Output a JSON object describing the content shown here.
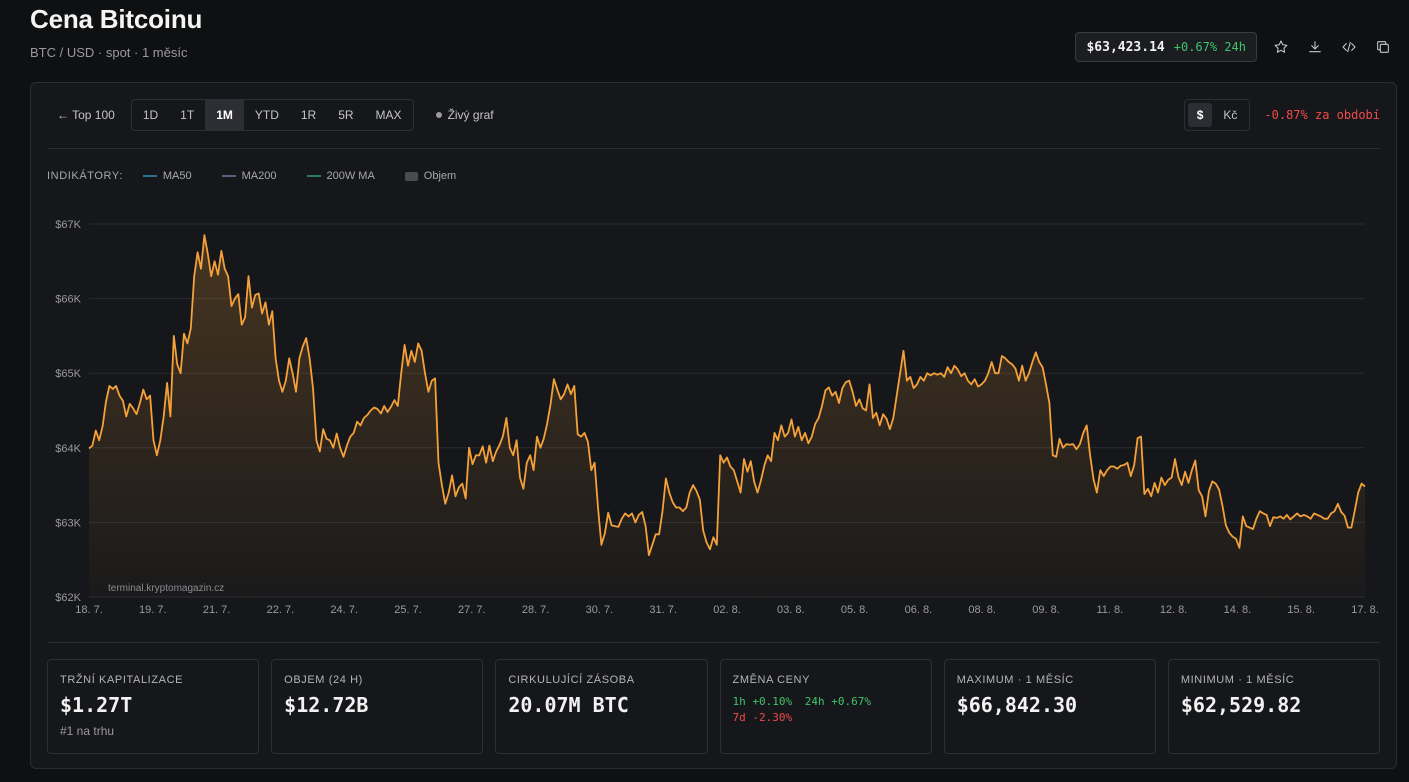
{
  "header": {
    "title": "Cena Bitcoinu",
    "subtitle": "BTC / USD · spot · 1 měsíc",
    "price": "$63,423.14",
    "change_24h": "+0.67% 24h"
  },
  "toolbar": {
    "back_label": "← Top 100",
    "ranges": [
      "1D",
      "1T",
      "1M",
      "YTD",
      "1R",
      "5R",
      "MAX"
    ],
    "active_range": "1M",
    "live_label": "Živý graf",
    "currencies": [
      "$",
      "Kč"
    ],
    "active_currency": "$",
    "period_change": "-0.87% za období"
  },
  "indicators": {
    "title": "INDIKÁTORY:",
    "items": [
      {
        "label": "MA50",
        "color": "#2f6f8f"
      },
      {
        "label": "MA200",
        "color": "#5b5f86"
      },
      {
        "label": "200W MA",
        "color": "#2f7a5e"
      },
      {
        "label": "Objem",
        "color": "#4a4b50"
      }
    ]
  },
  "colors": {
    "line": "#f5a13a",
    "positive": "#3fc46a",
    "negative": "#ef4b4b",
    "background": "#0f1012",
    "panel": "#16171a"
  },
  "chart_data": {
    "type": "area",
    "ylim": [
      62000,
      67000
    ],
    "y_ticks": [
      62000,
      63000,
      64000,
      65000,
      66000,
      67000
    ],
    "y_tick_labels": [
      "$62K",
      "$63K",
      "$64K",
      "$65K",
      "$66K",
      "$67K"
    ],
    "x_labels": [
      "18. 7.",
      "19. 7.",
      "21. 7.",
      "22. 7.",
      "24. 7.",
      "25. 7.",
      "27. 7.",
      "28. 7.",
      "30. 7.",
      "31. 7.",
      "02. 8.",
      "03. 8.",
      "05. 8.",
      "06. 8.",
      "08. 8.",
      "09. 8.",
      "11. 8.",
      "12. 8.",
      "14. 8.",
      "15. 8.",
      "17. 8."
    ],
    "watermark": "terminal.kryptomagazin.cz",
    "grid": true,
    "series": [
      {
        "values": [
          63990,
          64030,
          64230,
          64100,
          64290,
          64620,
          64830,
          64790,
          64830,
          64700,
          64630,
          64420,
          64590,
          64530,
          64450,
          64600,
          64780,
          64650,
          64700,
          64100,
          63900,
          64100,
          64420,
          64870,
          64420,
          65500,
          65120,
          65000,
          65530,
          65400,
          65600,
          66300,
          66620,
          66400,
          66850,
          66600,
          66300,
          66500,
          66320,
          66640,
          66400,
          66300,
          65900,
          66000,
          66060,
          65650,
          65750,
          66300,
          65880,
          66050,
          66070,
          65800,
          65950,
          65650,
          65830,
          65200,
          64900,
          64750,
          64900,
          65200,
          65000,
          64750,
          65200,
          65360,
          65470,
          65200,
          64800,
          64100,
          63950,
          64250,
          64120,
          64100,
          64000,
          64190,
          64000,
          63880,
          64030,
          64150,
          64200,
          64350,
          64300,
          64400,
          64440,
          64500,
          64540,
          64520,
          64460,
          64560,
          64480,
          64550,
          64640,
          64560,
          65000,
          65380,
          65100,
          65300,
          65150,
          65400,
          65300,
          65000,
          64750,
          64900,
          64930,
          63800,
          63500,
          63250,
          63400,
          63630,
          63350,
          63470,
          63520,
          63320,
          64000,
          63780,
          63900,
          63900,
          64020,
          63800,
          64030,
          63820,
          63950,
          64040,
          64160,
          64400,
          64000,
          63900,
          64100,
          63600,
          63450,
          63800,
          63900,
          63700,
          64150,
          64000,
          64120,
          64320,
          64580,
          64920,
          64780,
          64650,
          64720,
          64850,
          64720,
          64830,
          64180,
          64150,
          64200,
          64080,
          63700,
          63800,
          63200,
          62700,
          62850,
          63130,
          62960,
          62950,
          62940,
          63050,
          63120,
          63080,
          63120,
          63000,
          63100,
          63140,
          62950,
          62560,
          62700,
          62840,
          62840,
          63150,
          63590,
          63400,
          63270,
          63200,
          63200,
          63150,
          63200,
          63400,
          63500,
          63420,
          63300,
          62890,
          62730,
          62640,
          62800,
          62700,
          63900,
          63800,
          63870,
          63750,
          63700,
          63550,
          63400,
          63850,
          63680,
          63820,
          63550,
          63400,
          63560,
          63760,
          63900,
          63820,
          64200,
          64100,
          64300,
          64150,
          64200,
          64380,
          64150,
          64280,
          64100,
          64200,
          64060,
          64150,
          64320,
          64400,
          64560,
          64770,
          64810,
          64700,
          64750,
          64600,
          64800,
          64880,
          64900,
          64750,
          64560,
          64650,
          64530,
          64500,
          64850,
          64400,
          64470,
          64300,
          64450,
          64390,
          64250,
          64400,
          64700,
          65000,
          65300,
          64900,
          64950,
          64800,
          64850,
          64950,
          64900,
          65000,
          64970,
          65000,
          64980,
          65000,
          64950,
          65080,
          65000,
          65100,
          65050,
          64960,
          65000,
          64900,
          64850,
          64920,
          64820,
          64850,
          64900,
          65000,
          65150,
          65000,
          65000,
          65230,
          65200,
          65150,
          65120,
          65060,
          64900,
          65100,
          64900,
          65000,
          65150,
          65280,
          65150,
          65080,
          64850,
          64600,
          63900,
          63880,
          64120,
          64000,
          64050,
          64040,
          64050,
          63980,
          64050,
          64200,
          64300,
          63900,
          63580,
          63400,
          63700,
          63620,
          63700,
          63750,
          63750,
          63720,
          63760,
          63770,
          63800,
          63620,
          63770,
          64130,
          64150,
          63380,
          63450,
          63350,
          63530,
          63400,
          63600,
          63500,
          63570,
          63600,
          63850,
          63610,
          63500,
          63680,
          63530,
          63700,
          63830,
          63430,
          63350,
          63080,
          63420,
          63550,
          63520,
          63440,
          63220,
          62960,
          62860,
          62810,
          62780,
          62660,
          63080,
          62950,
          62930,
          62910,
          63050,
          63150,
          63120,
          63100,
          62950,
          63070,
          63060,
          63080,
          63050,
          63100,
          63040,
          63080,
          63120,
          63080,
          63100,
          63080,
          63050,
          63120,
          63100,
          63080,
          63050,
          63050,
          63120,
          63150,
          63250,
          63140,
          63090,
          62930,
          62930,
          63160,
          63400,
          63520,
          63480
        ]
      }
    ]
  },
  "stats": [
    {
      "label": "TRŽNÍ KAPITALIZACE",
      "value": "$1.27T",
      "sub": "#1 na trhu"
    },
    {
      "label": "OBJEM (24 H)",
      "value": "$12.72B"
    },
    {
      "label": "CIRKULUJÍCÍ ZÁSOBA",
      "value": "20.07M BTC"
    },
    {
      "label": "ZMĚNA CENY",
      "changes": [
        {
          "text": "1h +0.10%",
          "sign": "pos"
        },
        {
          "text": "24h +0.67%",
          "sign": "pos"
        },
        {
          "text": "7d -2.30%",
          "sign": "neg"
        }
      ]
    },
    {
      "label": "MAXIMUM · 1 MĚSÍC",
      "value": "$66,842.30"
    },
    {
      "label": "MINIMUM · 1 MĚSÍC",
      "value": "$62,529.82"
    }
  ]
}
